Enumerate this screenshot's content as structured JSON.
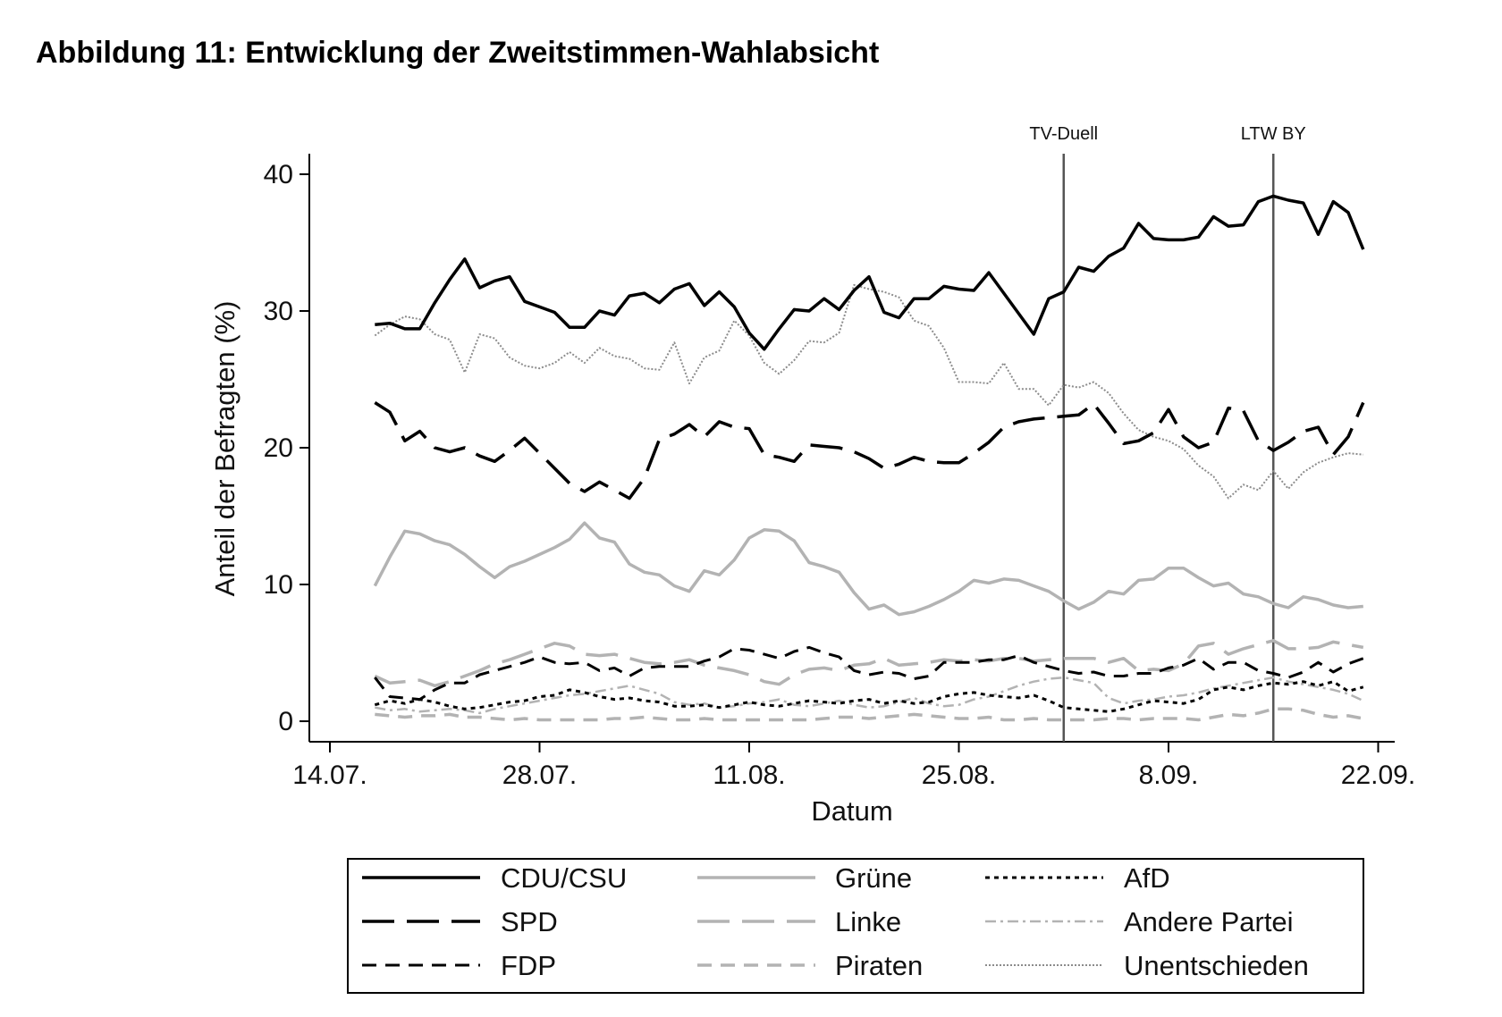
{
  "title": "Abbildung 11: Entwicklung der Zweitstimmen-Wahlabsicht",
  "chart_data": {
    "type": "line",
    "title": "Abbildung 11: Entwicklung der Zweitstimmen-Wahlabsicht",
    "xlabel": "Datum",
    "ylabel": "Anteil der Befragten (%)",
    "x_axis": {
      "start": "14.07.",
      "ticks": [
        {
          "day": 0,
          "label": "14.07."
        },
        {
          "day": 14,
          "label": "28.07."
        },
        {
          "day": 28,
          "label": "11.08."
        },
        {
          "day": 42,
          "label": "25.08."
        },
        {
          "day": 56,
          "label": "8.09."
        },
        {
          "day": 70,
          "label": "22.09."
        }
      ],
      "range": [
        "12.07.",
        "23.09."
      ]
    },
    "y_axis": {
      "ticks": [
        0,
        10,
        20,
        30,
        40
      ],
      "range": [
        -1.5,
        41.5
      ]
    },
    "grid": false,
    "legend": {
      "placement": "bottom",
      "columns": 3
    },
    "markers": [
      {
        "label": "TV-Duell",
        "date": "1.09."
      },
      {
        "label": "LTW BY",
        "date": "15.09."
      }
    ],
    "x_dates": [
      "17.07.",
      "18.07.",
      "19.07.",
      "20.07.",
      "21.07.",
      "22.07.",
      "23.07.",
      "24.07.",
      "25.07.",
      "26.07.",
      "27.07.",
      "28.07.",
      "29.07.",
      "30.07.",
      "31.07.",
      "1.08.",
      "2.08.",
      "3.08.",
      "4.08.",
      "5.08.",
      "6.08.",
      "7.08.",
      "8.08.",
      "9.08.",
      "10.08.",
      "11.08.",
      "12.08.",
      "13.08.",
      "14.08.",
      "15.08.",
      "16.08.",
      "17.08.",
      "18.08.",
      "19.08.",
      "20.08.",
      "21.08.",
      "22.08.",
      "23.08.",
      "24.08.",
      "25.08.",
      "26.08.",
      "27.08.",
      "28.08.",
      "29.08.",
      "30.08.",
      "31.08.",
      "1.09.",
      "2.09.",
      "3.09.",
      "4.09.",
      "5.09.",
      "6.09.",
      "7.09.",
      "8.09.",
      "9.09.",
      "10.09.",
      "11.09.",
      "12.09.",
      "13.09.",
      "14.09.",
      "15.09.",
      "16.09.",
      "17.09.",
      "18.09.",
      "19.09.",
      "20.09.",
      "21.09."
    ],
    "series": [
      {
        "name": "CDU/CSU",
        "color": "#000000",
        "width": 3.5,
        "dash": "solid",
        "values": [
          29.0,
          29.1,
          28.7,
          28.7,
          30.6,
          32.3,
          33.8,
          31.7,
          32.2,
          32.5,
          30.7,
          30.3,
          29.9,
          28.8,
          28.8,
          30.0,
          29.7,
          31.1,
          31.3,
          30.6,
          31.6,
          32.0,
          30.4,
          31.4,
          30.3,
          28.4,
          27.2,
          28.7,
          30.1,
          30.0,
          30.9,
          30.1,
          31.5,
          32.5,
          29.9,
          29.5,
          30.9,
          30.9,
          31.8,
          31.6,
          31.5,
          32.8,
          31.3,
          29.8,
          28.3,
          30.9,
          31.4,
          33.2,
          32.9,
          34.0,
          34.6,
          36.4,
          35.3,
          35.2,
          35.2,
          35.4,
          36.9,
          36.2,
          36.3,
          38.0,
          38.4,
          38.1,
          37.9,
          35.6,
          38.0,
          37.2,
          34.5
        ]
      },
      {
        "name": "SPD",
        "color": "#000000",
        "width": 3.5,
        "dash": "long",
        "values": [
          23.3,
          22.6,
          20.5,
          21.2,
          20.0,
          19.7,
          20.0,
          19.4,
          19.0,
          19.8,
          20.7,
          19.6,
          18.5,
          17.4,
          16.8,
          17.5,
          16.9,
          16.3,
          17.8,
          20.6,
          21.0,
          21.7,
          20.8,
          21.9,
          21.5,
          21.4,
          19.5,
          19.3,
          19.0,
          20.2,
          20.1,
          20.0,
          19.7,
          19.2,
          18.5,
          18.8,
          19.3,
          19.0,
          18.9,
          18.9,
          19.6,
          20.4,
          21.5,
          21.9,
          22.1,
          22.2,
          22.3,
          22.4,
          23.2,
          21.8,
          20.3,
          20.5,
          21.1,
          22.8,
          20.8,
          20.0,
          20.4,
          22.9,
          22.7,
          20.5,
          19.8,
          20.4,
          21.2,
          21.5,
          19.5,
          20.8,
          23.3
        ]
      },
      {
        "name": "FDP",
        "color": "#000000",
        "width": 3.0,
        "dash": "short",
        "values": [
          3.2,
          1.8,
          1.7,
          1.6,
          2.3,
          2.8,
          2.8,
          3.4,
          3.7,
          4.0,
          4.3,
          4.7,
          4.3,
          4.2,
          4.3,
          3.7,
          3.9,
          3.3,
          3.9,
          4.0,
          4.0,
          4.0,
          4.4,
          4.7,
          5.3,
          5.2,
          4.9,
          4.6,
          5.1,
          5.4,
          5.0,
          4.7,
          3.7,
          3.4,
          3.6,
          3.5,
          3.1,
          3.3,
          4.3,
          4.3,
          4.3,
          4.5,
          4.5,
          4.8,
          4.3,
          4.0,
          3.7,
          3.5,
          3.6,
          3.3,
          3.3,
          3.5,
          3.5,
          3.9,
          4.1,
          4.6,
          3.8,
          4.3,
          4.3,
          3.7,
          3.5,
          3.2,
          3.6,
          4.3,
          3.6,
          4.2,
          4.6
        ]
      },
      {
        "name": "Grüne",
        "color": "#b3b3b3",
        "width": 3.5,
        "dash": "solid",
        "values": [
          9.9,
          12.0,
          13.9,
          13.7,
          13.2,
          12.9,
          12.2,
          11.3,
          10.5,
          11.3,
          11.7,
          12.2,
          12.7,
          13.3,
          14.5,
          13.4,
          13.1,
          11.5,
          10.9,
          10.7,
          9.9,
          9.5,
          11.0,
          10.7,
          11.8,
          13.4,
          14.0,
          13.9,
          13.2,
          11.6,
          11.3,
          10.9,
          9.4,
          8.2,
          8.5,
          7.8,
          8.0,
          8.4,
          8.9,
          9.5,
          10.3,
          10.1,
          10.4,
          10.3,
          9.9,
          9.5,
          8.8,
          8.2,
          8.7,
          9.5,
          9.3,
          10.3,
          10.4,
          11.2,
          11.2,
          10.5,
          9.9,
          10.1,
          9.3,
          9.1,
          8.6,
          8.3,
          9.1,
          8.9,
          8.5,
          8.3,
          8.4
        ]
      },
      {
        "name": "Linke",
        "color": "#b3b3b3",
        "width": 3.5,
        "dash": "long",
        "values": [
          3.3,
          2.8,
          2.9,
          3.0,
          2.6,
          2.9,
          3.3,
          3.7,
          4.2,
          4.5,
          4.9,
          5.3,
          5.7,
          5.5,
          4.9,
          4.8,
          4.9,
          4.6,
          4.3,
          4.2,
          4.3,
          4.5,
          4.1,
          3.9,
          3.7,
          3.4,
          2.9,
          2.7,
          3.4,
          3.8,
          3.9,
          3.7,
          4.1,
          4.2,
          4.6,
          4.1,
          4.2,
          4.3,
          4.5,
          4.4,
          4.5,
          4.4,
          4.6,
          4.6,
          4.4,
          4.5,
          4.6,
          4.6,
          4.6,
          4.3,
          4.6,
          3.7,
          3.8,
          3.7,
          4.2,
          5.5,
          5.7,
          4.9,
          5.3,
          5.6,
          5.9,
          5.3,
          5.3,
          5.4,
          5.8,
          5.6,
          5.4
        ]
      },
      {
        "name": "Piraten",
        "color": "#b3b3b3",
        "width": 3.5,
        "dash": "short",
        "values": [
          0.5,
          0.4,
          0.3,
          0.4,
          0.4,
          0.5,
          0.3,
          0.3,
          0.2,
          0.1,
          0.2,
          0.1,
          0.1,
          0.1,
          0.1,
          0.1,
          0.2,
          0.2,
          0.3,
          0.2,
          0.1,
          0.1,
          0.2,
          0.1,
          0.1,
          0.1,
          0.1,
          0.1,
          0.1,
          0.1,
          0.2,
          0.3,
          0.3,
          0.2,
          0.3,
          0.4,
          0.5,
          0.4,
          0.3,
          0.2,
          0.2,
          0.3,
          0.1,
          0.1,
          0.2,
          0.1,
          0.1,
          0.1,
          0.1,
          0.2,
          0.2,
          0.1,
          0.2,
          0.2,
          0.2,
          0.1,
          0.3,
          0.5,
          0.4,
          0.6,
          0.9,
          0.9,
          0.8,
          0.5,
          0.3,
          0.4,
          0.2
        ]
      },
      {
        "name": "AfD",
        "color": "#000000",
        "width": 3.0,
        "dash": "dot",
        "values": [
          1.2,
          1.5,
          1.3,
          1.6,
          1.4,
          1.1,
          0.9,
          1.0,
          1.2,
          1.4,
          1.5,
          1.8,
          1.9,
          2.3,
          2.1,
          1.8,
          1.6,
          1.7,
          1.5,
          1.4,
          1.1,
          1.1,
          1.2,
          1.0,
          1.2,
          1.4,
          1.2,
          1.1,
          1.3,
          1.5,
          1.4,
          1.3,
          1.5,
          1.6,
          1.3,
          1.5,
          1.3,
          1.4,
          1.8,
          2.0,
          2.1,
          1.9,
          1.8,
          1.7,
          1.9,
          1.5,
          1.0,
          0.9,
          0.8,
          0.7,
          0.9,
          1.2,
          1.5,
          1.4,
          1.3,
          1.6,
          2.3,
          2.5,
          2.3,
          2.6,
          2.8,
          2.7,
          2.9,
          2.6,
          2.9,
          2.2,
          2.5
        ]
      },
      {
        "name": "Andere Partei",
        "color": "#b3b3b3",
        "width": 2.5,
        "dash": "dashdot",
        "values": [
          1.0,
          0.8,
          0.9,
          0.7,
          0.8,
          0.9,
          0.8,
          0.6,
          0.9,
          1.1,
          1.3,
          1.5,
          1.7,
          1.9,
          2.0,
          2.2,
          2.4,
          2.6,
          2.3,
          2.0,
          1.4,
          1.2,
          1.3,
          1.0,
          1.1,
          1.3,
          1.4,
          1.6,
          1.2,
          1.1,
          1.3,
          1.5,
          1.2,
          1.0,
          1.1,
          1.4,
          1.7,
          1.3,
          1.1,
          1.2,
          1.6,
          1.8,
          2.2,
          2.6,
          2.9,
          3.1,
          3.2,
          3.0,
          2.8,
          1.7,
          1.3,
          1.5,
          1.6,
          1.8,
          1.9,
          2.1,
          2.4,
          2.6,
          2.8,
          3.0,
          3.2,
          2.9,
          2.7,
          2.5,
          2.3,
          2.0,
          1.5
        ]
      },
      {
        "name": "Unentschieden",
        "color": "#8c8c8c",
        "width": 2.0,
        "dash": "fine",
        "values": [
          28.2,
          29.0,
          29.6,
          29.4,
          28.3,
          27.9,
          25.5,
          28.3,
          28.0,
          26.6,
          26.0,
          25.8,
          26.2,
          27.0,
          26.2,
          27.3,
          26.7,
          26.5,
          25.8,
          25.7,
          27.7,
          24.7,
          26.6,
          27.1,
          29.3,
          28.2,
          26.2,
          25.4,
          26.4,
          27.8,
          27.7,
          28.4,
          31.9,
          31.6,
          31.4,
          31.0,
          29.3,
          28.9,
          27.3,
          24.8,
          24.8,
          24.7,
          26.2,
          24.3,
          24.3,
          23.1,
          24.6,
          24.4,
          24.8,
          24.0,
          22.5,
          21.3,
          20.8,
          20.5,
          19.9,
          18.7,
          17.9,
          16.3,
          17.3,
          16.9,
          18.3,
          17.0,
          18.2,
          18.9,
          19.3,
          19.6,
          19.5
        ]
      }
    ]
  }
}
